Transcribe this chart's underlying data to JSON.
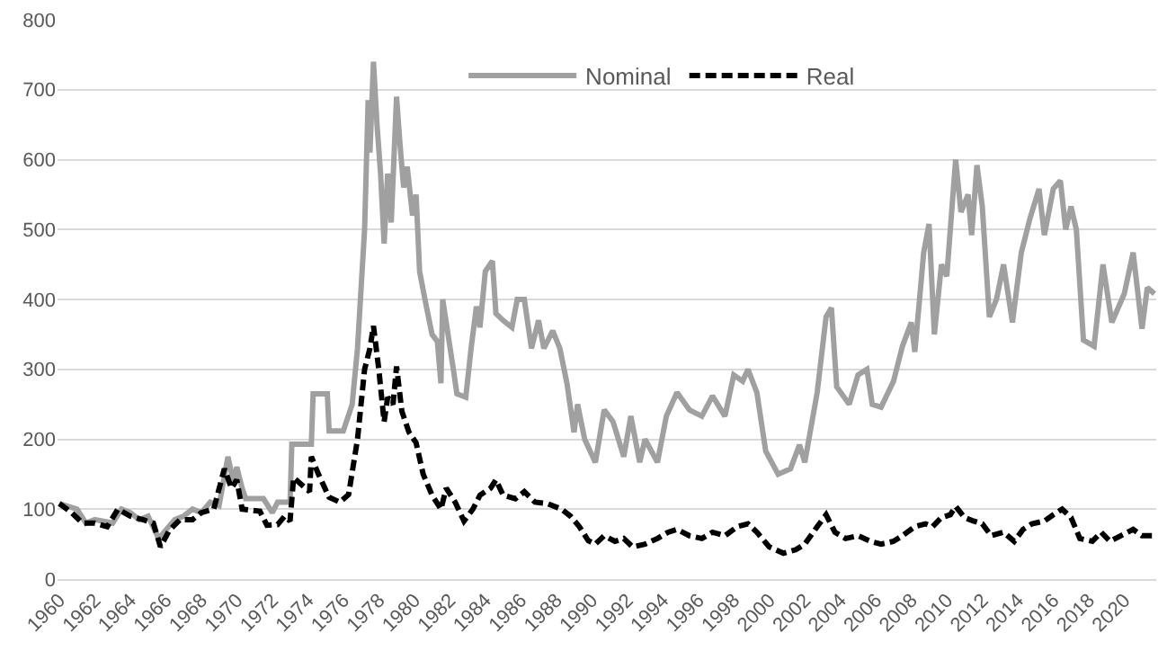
{
  "chart_data": {
    "type": "line",
    "xlim": [
      1959.9,
      2021.8
    ],
    "xticks": [
      1960,
      1962,
      1964,
      1966,
      1968,
      1970,
      1972,
      1974,
      1976,
      1978,
      1980,
      1982,
      1984,
      1986,
      1988,
      1990,
      1992,
      1994,
      1996,
      1998,
      2000,
      2002,
      2004,
      2006,
      2008,
      2010,
      2012,
      2014,
      2016,
      2018,
      2020
    ],
    "ylim": [
      0,
      800
    ],
    "yticks": [
      0,
      100,
      200,
      300,
      400,
      500,
      600,
      700,
      800
    ],
    "grid": "y",
    "legend": "top",
    "marker": "none",
    "series": [
      {
        "name": "Nominal",
        "color": "#a0a0a0",
        "line_style": "solid",
        "x": [
          1960,
          1961,
          1961.5,
          1962,
          1963,
          1963.5,
          1964,
          1964.5,
          1965,
          1965.6,
          1966,
          1966.5,
          1967,
          1967.5,
          1968,
          1968.5,
          1969,
          1969.5,
          1969.8,
          1970,
          1970.3,
          1970.5,
          1971.5,
          1972,
          1972.3,
          1973,
          1973.1,
          1974.2,
          1974.3,
          1975.1,
          1975.2,
          1976,
          1976.5,
          1976.8,
          1977.2,
          1977.4,
          1977.5,
          1977.7,
          1977.9,
          1978.1,
          1978.3,
          1978.5,
          1978.7,
          1979,
          1979.2,
          1979.4,
          1979.6,
          1979.9,
          1980.1,
          1980.3,
          1980.6,
          1981,
          1981.3,
          1981.5,
          1981.6,
          1981.9,
          1982.2,
          1982.4,
          1982.9,
          1983.2,
          1983.5,
          1983.7,
          1984,
          1984.4,
          1984.6,
          1985,
          1985.5,
          1985.8,
          1986.2,
          1986.6,
          1987,
          1987.3,
          1987.8,
          1988.2,
          1988.6,
          1989,
          1989.2,
          1989.6,
          1990.2,
          1990.7,
          1991.2,
          1991.8,
          1992.2,
          1992.7,
          1993,
          1993.7,
          1994.2,
          1994.8,
          1995.5,
          1996.2,
          1996.8,
          1997.5,
          1998,
          1998.5,
          1998.8,
          1999.3,
          1999.8,
          2000.5,
          2001.2,
          2001.7,
          2002,
          2002.7,
          2003.2,
          2003.5,
          2003.8,
          2004.5,
          2005,
          2005.5,
          2005.8,
          2006.3,
          2007,
          2007.5,
          2008,
          2008.2,
          2008.7,
          2009,
          2009.3,
          2009.7,
          2010,
          2010.5,
          2010.8,
          2011.2,
          2011.4,
          2011.7,
          2012,
          2012.4,
          2012.8,
          2013.2,
          2013.7,
          2014.2,
          2014.7,
          2015.2,
          2015.5,
          2016,
          2016.4,
          2016.7,
          2017,
          2017.3,
          2017.7,
          2018.3,
          2018.8,
          2019.3,
          2020,
          2020.5,
          2021,
          2021.3,
          2021.7
        ],
        "values": [
          108,
          100,
          80,
          85,
          80,
          100,
          95,
          85,
          90,
          58,
          70,
          85,
          90,
          100,
          95,
          110,
          105,
          175,
          140,
          160,
          130,
          115,
          115,
          95,
          110,
          110,
          193,
          193,
          265,
          265,
          212,
          212,
          250,
          330,
          500,
          685,
          610,
          740,
          650,
          580,
          480,
          580,
          510,
          690,
          620,
          560,
          590,
          520,
          550,
          440,
          400,
          350,
          340,
          280,
          400,
          350,
          300,
          265,
          260,
          330,
          390,
          360,
          440,
          455,
          380,
          370,
          360,
          400,
          400,
          330,
          370,
          330,
          355,
          330,
          280,
          210,
          250,
          200,
          167,
          242,
          225,
          175,
          233,
          167,
          200,
          167,
          233,
          267,
          242,
          233,
          262,
          233,
          292,
          283,
          300,
          267,
          183,
          150,
          158,
          192,
          167,
          267,
          375,
          388,
          275,
          250,
          292,
          300,
          250,
          246,
          283,
          333,
          367,
          325,
          467,
          508,
          350,
          450,
          433,
          600,
          525,
          550,
          492,
          592,
          533,
          375,
          400,
          450,
          367,
          467,
          517,
          558,
          492,
          558,
          570,
          500,
          533,
          500,
          342,
          333,
          450,
          367,
          408,
          467,
          358,
          417,
          408
        ]
      },
      {
        "name": "Real",
        "color": "#000000",
        "line_style": "dashed",
        "x": [
          1960,
          1960.7,
          1961.3,
          1962,
          1962.7,
          1963.3,
          1964,
          1964.7,
          1965.3,
          1965.7,
          1966.2,
          1966.8,
          1967.5,
          1968,
          1968.7,
          1969.3,
          1969.7,
          1970,
          1970.3,
          1971.3,
          1971.7,
          1972.3,
          1972.7,
          1973,
          1973.2,
          1974.1,
          1974.2,
          1974.6,
          1975.2,
          1975.8,
          1976.3,
          1976.8,
          1977.2,
          1977.5,
          1977.7,
          1978,
          1978.3,
          1978.5,
          1978.8,
          1979,
          1979.3,
          1979.7,
          1980.1,
          1980.5,
          1981,
          1981.5,
          1981.8,
          1982.3,
          1982.8,
          1983.3,
          1983.7,
          1984.3,
          1984.6,
          1985,
          1985.7,
          1986.2,
          1986.8,
          1987.5,
          1988.3,
          1988.8,
          1989.3,
          1989.8,
          1990.2,
          1990.7,
          1991.3,
          1991.8,
          1992.3,
          1993,
          1993.7,
          1994.3,
          1994.8,
          1995.5,
          1996.2,
          1996.8,
          1997.5,
          1998.2,
          1998.8,
          1999.3,
          2000,
          2000.8,
          2001.5,
          2002,
          2002.7,
          2003.2,
          2003.7,
          2004.3,
          2005,
          2005.7,
          2006.3,
          2007,
          2007.5,
          2008.2,
          2008.8,
          2009.2,
          2009.7,
          2010.2,
          2010.5,
          2011,
          2011.5,
          2012,
          2012.5,
          2013.2,
          2013.8,
          2014.3,
          2014.8,
          2015.5,
          2016,
          2016.5,
          2017,
          2017.5,
          2018.2,
          2018.7,
          2019.2,
          2019.8,
          2020.5,
          2021,
          2021.7
        ],
        "values": [
          108,
          95,
          80,
          80,
          75,
          100,
          90,
          85,
          80,
          46,
          70,
          85,
          85,
          95,
          100,
          158,
          130,
          142,
          100,
          97,
          77,
          78,
          90,
          83,
          145,
          125,
          175,
          150,
          117,
          110,
          121,
          200,
          300,
          330,
          362,
          300,
          225,
          260,
          250,
          304,
          240,
          210,
          195,
          150,
          120,
          100,
          130,
          110,
          83,
          100,
          120,
          130,
          142,
          120,
          115,
          125,
          110,
          108,
          100,
          90,
          75,
          55,
          50,
          62,
          54,
          58,
          46,
          50,
          58,
          67,
          71,
          62,
          58,
          67,
          62,
          75,
          79,
          67,
          46,
          37,
          42,
          50,
          75,
          92,
          67,
          58,
          62,
          54,
          50,
          54,
          62,
          75,
          79,
          75,
          88,
          92,
          104,
          88,
          83,
          79,
          62,
          67,
          54,
          71,
          79,
          83,
          92,
          100,
          88,
          58,
          54,
          67,
          54,
          62,
          71,
          62,
          62
        ]
      }
    ]
  }
}
